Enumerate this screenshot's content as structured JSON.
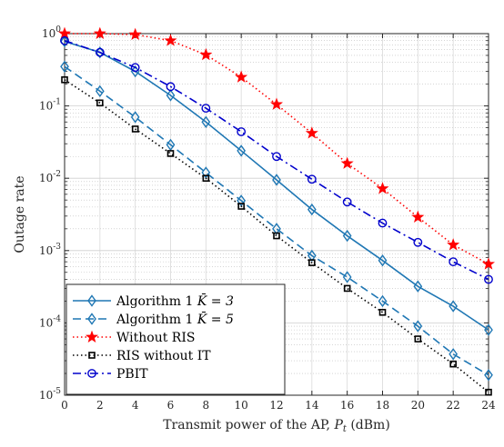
{
  "chart_data": {
    "type": "line",
    "xlabel": "Transmit power of the AP, P_t (dBm)",
    "xlabel_parts": {
      "prefix": "Transmit power of the AP, ",
      "symbol": "P",
      "subscript": "t",
      "suffix": " (dBm)"
    },
    "ylabel": "Outage rate",
    "y_scale": "log",
    "xlim": [
      0,
      24
    ],
    "ylim": [
      1e-05,
      1
    ],
    "x_ticks": [
      0,
      2,
      4,
      6,
      8,
      10,
      12,
      14,
      16,
      18,
      20,
      22,
      24
    ],
    "y_ticks": [
      {
        "value": 1,
        "base": "10",
        "exp": "0"
      },
      {
        "value": 0.1,
        "base": "10",
        "exp": "-1"
      },
      {
        "value": 0.01,
        "base": "10",
        "exp": "-2"
      },
      {
        "value": 0.001,
        "base": "10",
        "exp": "-3"
      },
      {
        "value": 0.0001,
        "base": "10",
        "exp": "-4"
      },
      {
        "value": 1e-05,
        "base": "10",
        "exp": "-5"
      }
    ],
    "grid": true,
    "minor_grid": true,
    "legend_position": "bottom-left",
    "x": [
      0,
      2,
      4,
      6,
      8,
      10,
      12,
      14,
      16,
      18,
      20,
      22,
      24
    ],
    "series": [
      {
        "name": "Algorithm 1 K̄ = 3",
        "label_text": "Algorithm 1 ",
        "label_math": "K̄ = 3",
        "color": "#1f77b4",
        "dash": "solid",
        "marker": "diamond",
        "values": [
          0.78,
          0.55,
          0.3,
          0.14,
          0.06,
          0.024,
          0.0095,
          0.0037,
          0.0016,
          0.00073,
          0.00032,
          0.00017,
          8e-05
        ]
      },
      {
        "name": "Algorithm 1 K̄ = 5",
        "label_text": "Algorithm 1 ",
        "label_math": "K̄ = 5",
        "color": "#1f77b4",
        "dash": "dashed",
        "marker": "diamond",
        "values": [
          0.35,
          0.16,
          0.07,
          0.029,
          0.012,
          0.0049,
          0.002,
          0.00085,
          0.00043,
          0.0002,
          9e-05,
          3.7e-05,
          1.9e-05
        ]
      },
      {
        "name": "Without RIS",
        "color": "#ff0000",
        "dash": "dotted",
        "marker": "star",
        "values": [
          1.0,
          1.0,
          0.97,
          0.8,
          0.51,
          0.25,
          0.105,
          0.042,
          0.016,
          0.0072,
          0.0029,
          0.0012,
          0.00065
        ]
      },
      {
        "name": "RIS without IT",
        "color": "#000000",
        "dash": "dotted",
        "marker": "square",
        "values": [
          0.23,
          0.11,
          0.048,
          0.022,
          0.01,
          0.0041,
          0.0016,
          0.00068,
          0.0003,
          0.00014,
          6e-05,
          2.7e-05,
          1.1e-05
        ]
      },
      {
        "name": "PBIT",
        "color": "#0000cc",
        "dash": "dashdot",
        "marker": "circle",
        "values": [
          0.8,
          0.55,
          0.34,
          0.185,
          0.093,
          0.044,
          0.02,
          0.0097,
          0.0047,
          0.0024,
          0.0013,
          0.0007,
          0.0004
        ]
      }
    ]
  }
}
